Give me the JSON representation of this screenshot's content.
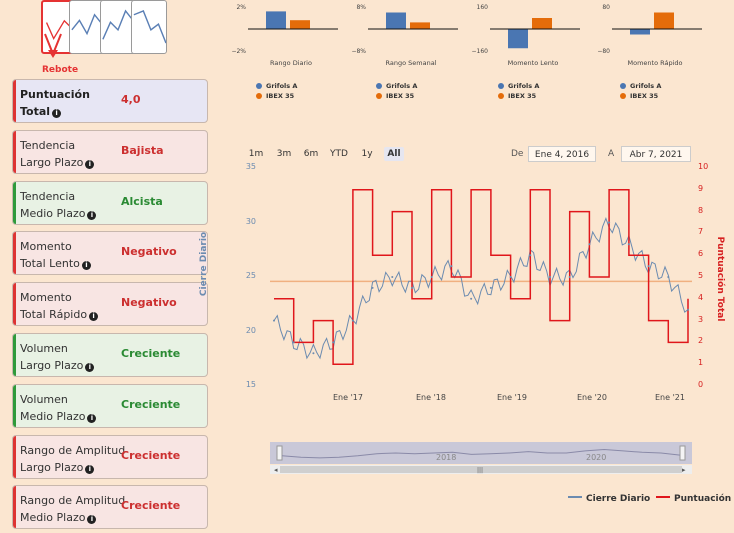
{
  "pattern_selector": {
    "selected_label": "Rebote",
    "thumbnails": [
      "rebote",
      "zigzag-1",
      "zigzag-2",
      "zigzag-3"
    ]
  },
  "indicators": [
    {
      "label_line1": "Puntuación",
      "label_line2": "Total",
      "value": "4,0",
      "type": "total"
    },
    {
      "label_line1": "Tendencia",
      "label_line2": "Largo Plazo",
      "value": "Bajista",
      "type": "neg"
    },
    {
      "label_line1": "Tendencia",
      "label_line2": "Medio Plazo",
      "value": "Alcista",
      "type": "pos"
    },
    {
      "label_line1": "Momento",
      "label_line2": "Total Lento",
      "value": "Negativo",
      "type": "neg"
    },
    {
      "label_line1": "Momento",
      "label_line2": "Total Rápido",
      "value": "Negativo",
      "type": "neg"
    },
    {
      "label_line1": "Volumen",
      "label_line2": "Largo Plazo",
      "value": "Creciente",
      "type": "pos"
    },
    {
      "label_line1": "Volumen",
      "label_line2": "Medio Plazo",
      "value": "Creciente",
      "type": "pos"
    },
    {
      "label_line1": "Rango de Amplitud",
      "label_line2": "Largo Plazo",
      "value": "Creciente",
      "type": "neg"
    },
    {
      "label_line1": "Rango de Amplitud",
      "label_line2": "Medio Plazo",
      "value": "Creciente",
      "type": "neg"
    }
  ],
  "mini_charts": [
    {
      "title": "Rango Diario",
      "ymax": "2%",
      "ymin": "−2%",
      "values": [
        1.6,
        0.8
      ]
    },
    {
      "title": "Rango Semanal",
      "ymax": "8%",
      "ymin": "−8%",
      "values": [
        6.0,
        2.4
      ]
    },
    {
      "title": "Momento Lento",
      "ymax": "160",
      "ymin": "−160",
      "values": [
        -140,
        80
      ]
    },
    {
      "title": "Momento Rápido",
      "ymax": "80",
      "ymin": "−80",
      "values": [
        -20,
        60
      ]
    }
  ],
  "mini_legend": {
    "series1": "Grifols A",
    "series2": "IBEX 35"
  },
  "colors": {
    "blue": "#4a76b2",
    "orange": "#e46c0a",
    "red": "#e0161b",
    "price": "#6b8bb0"
  },
  "range_buttons": [
    "1m",
    "3m",
    "6m",
    "YTD",
    "1y",
    "All"
  ],
  "range_active": "All",
  "date_range": {
    "from_label": "De",
    "from": "Ene 4, 2016",
    "to_label": "A",
    "to": "Abr 7, 2021"
  },
  "main_chart": {
    "left_axis_title": "Cierre Diario",
    "right_axis_title": "Puntuación Total",
    "left_ticks": [
      "35",
      "30",
      "25",
      "20",
      "15"
    ],
    "right_ticks": [
      "10",
      "9",
      "8",
      "7",
      "6",
      "5",
      "4",
      "3",
      "2",
      "1",
      "0"
    ],
    "x_labels": [
      "Ene '17",
      "Ene '18",
      "Ene '19",
      "Ene '20",
      "Ene '21"
    ],
    "navigator_labels": [
      "2018",
      "2020"
    ],
    "legend_price": "Cierre Diario",
    "legend_score": "Puntuación"
  },
  "chart_data": {
    "type": "line",
    "x": [
      "2016-01",
      "2016-04",
      "2016-07",
      "2016-10",
      "2017-01",
      "2017-04",
      "2017-07",
      "2017-10",
      "2018-01",
      "2018-04",
      "2018-07",
      "2018-10",
      "2019-01",
      "2019-04",
      "2019-07",
      "2019-10",
      "2020-01",
      "2020-04",
      "2020-07",
      "2020-10",
      "2021-01",
      "2021-04"
    ],
    "series": [
      {
        "name": "Cierre Diario",
        "axis": "left",
        "values": [
          21,
          19,
          18,
          19,
          21,
          24,
          25,
          24,
          25,
          26,
          23,
          24,
          25,
          27,
          25,
          25,
          28,
          30,
          28,
          26,
          25,
          22
        ]
      },
      {
        "name": "Puntuación",
        "axis": "right",
        "values": [
          4,
          2,
          3,
          1,
          9,
          6,
          8,
          4,
          9,
          5,
          9,
          6,
          4,
          9,
          3,
          8,
          5,
          9,
          6,
          3,
          2,
          4
        ]
      }
    ],
    "ylim_left": [
      15,
      35
    ],
    "ylim_right": [
      0,
      10
    ],
    "reference_line_right": 4.8
  }
}
